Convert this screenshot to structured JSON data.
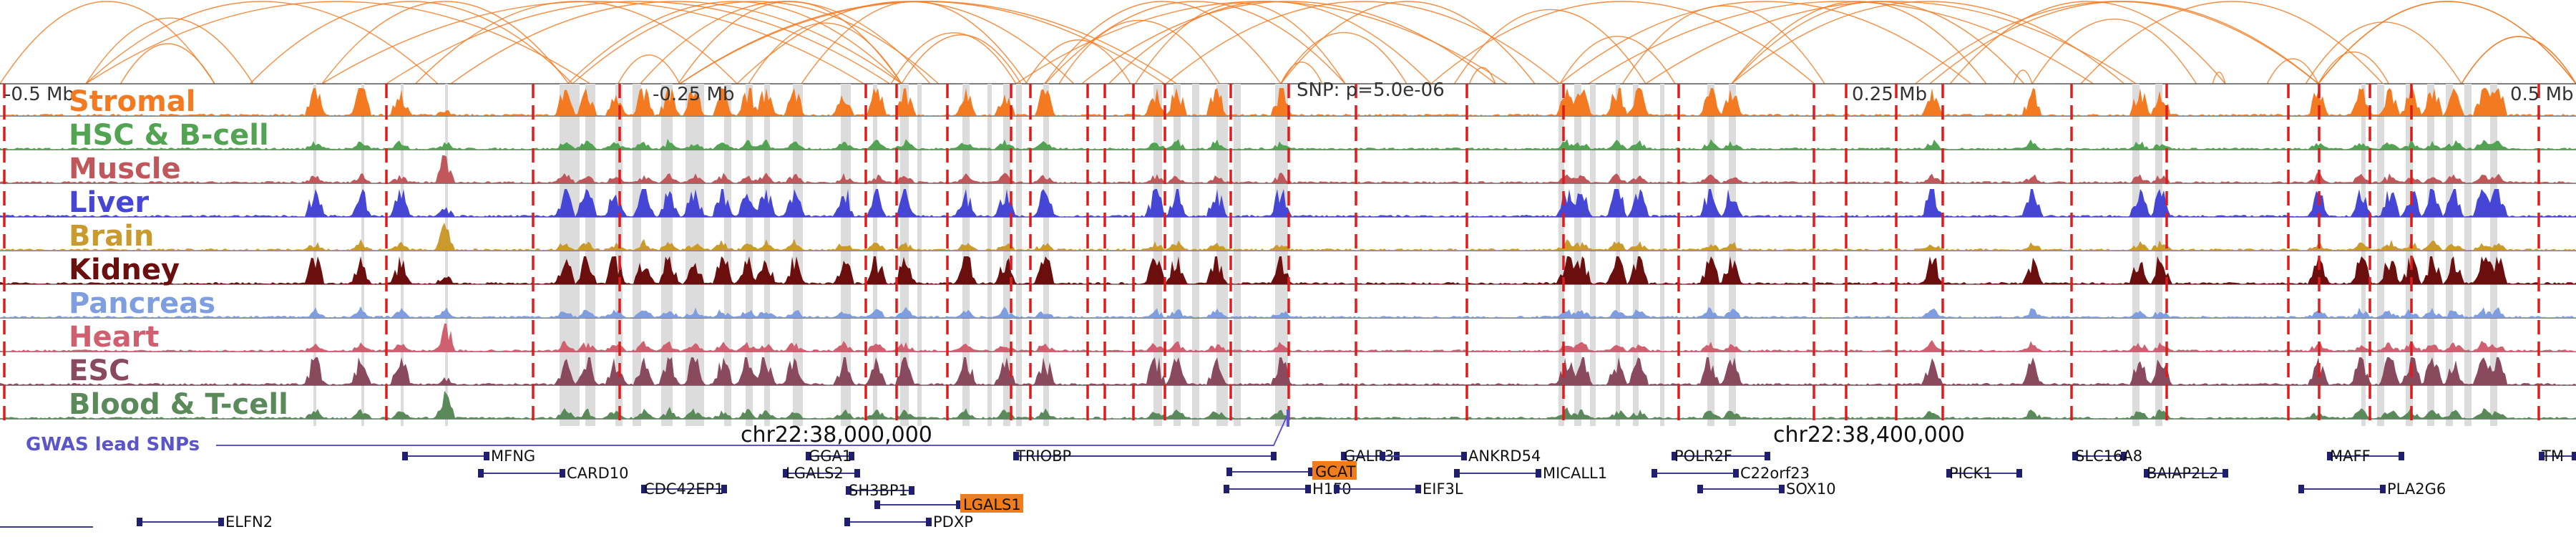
{
  "axis": {
    "left_label": "-0.5 Mb",
    "mid_left_label": "-0.25 Mb",
    "center_label": "SNP: p=5.0e-06",
    "mid_right_label": "0.25 Mb",
    "right_label": "0.5 Mb"
  },
  "tracks": [
    {
      "label": "Stromal",
      "color": "#f47a22"
    },
    {
      "label": "HSC & B-cell",
      "color": "#52a352"
    },
    {
      "label": "Muscle",
      "color": "#c0575a"
    },
    {
      "label": "Liver",
      "color": "#4646d6"
    },
    {
      "label": "Brain",
      "color": "#c99a2e"
    },
    {
      "label": "Kidney",
      "color": "#6b0e0e"
    },
    {
      "label": "Pancreas",
      "color": "#7f9ee0"
    },
    {
      "label": "Heart",
      "color": "#d06070"
    },
    {
      "label": "ESC",
      "color": "#8a4a5e"
    },
    {
      "label": "Blood & T-cell",
      "color": "#5a8a5a"
    }
  ],
  "arc_color": "#f47a22",
  "highlight_color": "#dcdcdc",
  "snp_line_color": "#e01b1b",
  "gwas": {
    "label": "GWAS lead SNPs",
    "color": "#5a55c8"
  },
  "coords": {
    "left": "chr22:38,000,000",
    "right": "chr22:38,400,000"
  },
  "genes": [
    {
      "name": "MFNG",
      "highlight": false
    },
    {
      "name": "CARD10",
      "highlight": false
    },
    {
      "name": "CDC42EP1",
      "highlight": false
    },
    {
      "name": "GGA1",
      "highlight": false
    },
    {
      "name": "LGALS2",
      "highlight": false
    },
    {
      "name": "SH3BP1",
      "highlight": false
    },
    {
      "name": "LGALS1",
      "highlight": true
    },
    {
      "name": "PDXP",
      "highlight": false
    },
    {
      "name": "TRIOBP",
      "highlight": false
    },
    {
      "name": "ELFN2",
      "highlight": false
    },
    {
      "name": "GALR3",
      "highlight": false
    },
    {
      "name": "GCAT",
      "highlight": true
    },
    {
      "name": "H1F0",
      "highlight": false
    },
    {
      "name": "ANKRD54",
      "highlight": false
    },
    {
      "name": "EIF3L",
      "highlight": false
    },
    {
      "name": "MICALL1",
      "highlight": false
    },
    {
      "name": "POLR2F",
      "highlight": false
    },
    {
      "name": "C22orf23",
      "highlight": false
    },
    {
      "name": "SOX10",
      "highlight": false
    },
    {
      "name": "PICK1",
      "highlight": false
    },
    {
      "name": "SLC16A8",
      "highlight": false
    },
    {
      "name": "BAIAP2L2",
      "highlight": false
    },
    {
      "name": "MAFF",
      "highlight": false
    },
    {
      "name": "PLA2G6",
      "highlight": false
    },
    {
      "name": "TM",
      "highlight": false
    }
  ],
  "gene_highlight_color": "#f07c1c"
}
